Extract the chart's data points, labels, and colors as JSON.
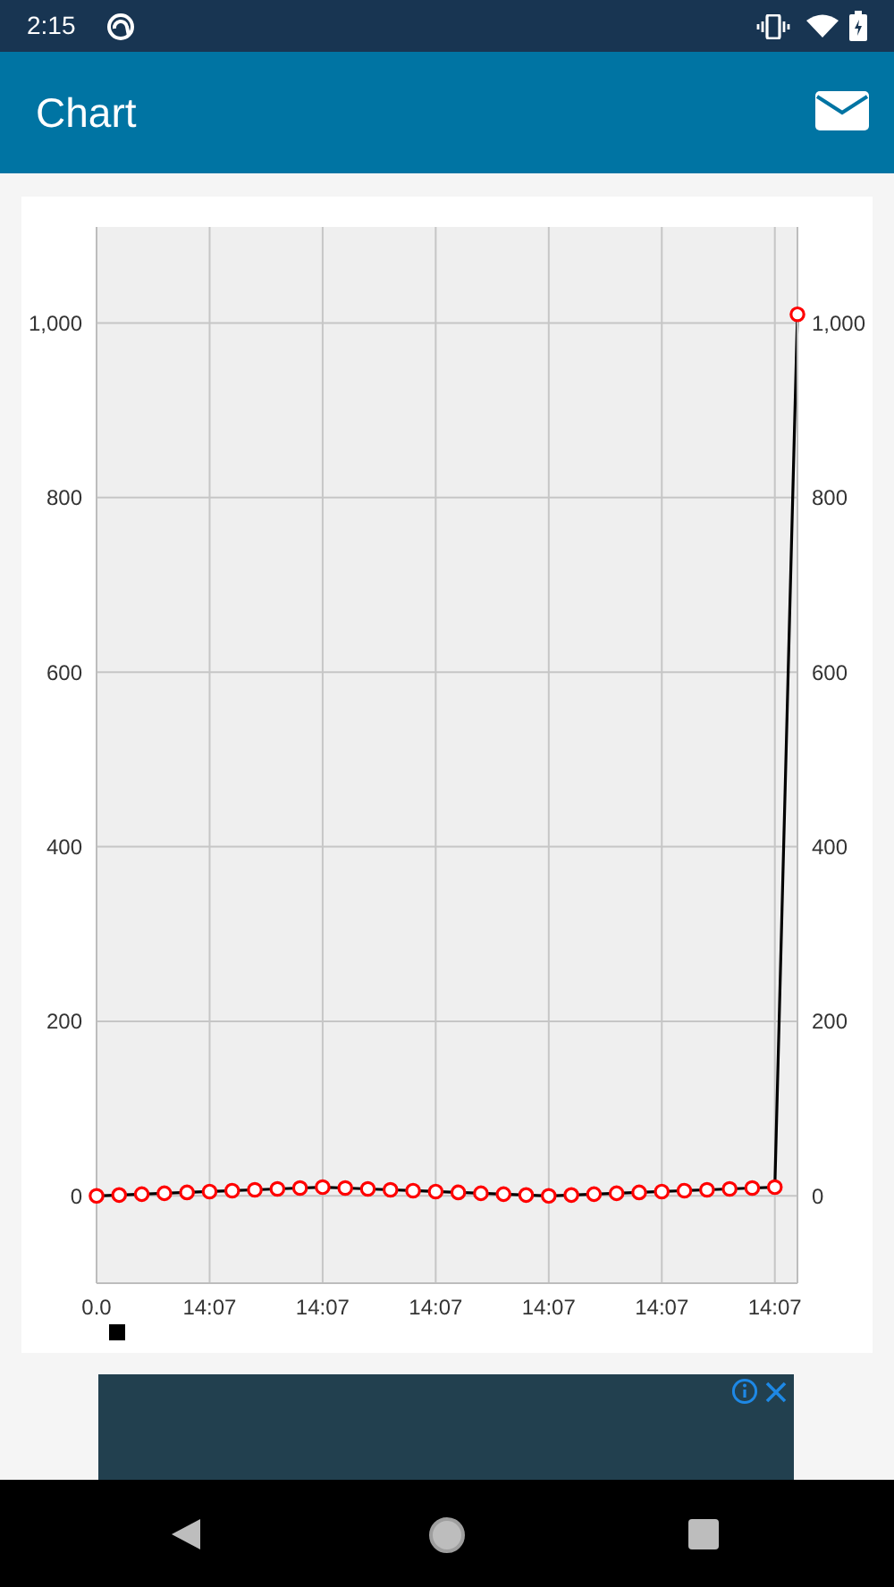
{
  "chart_data": {
    "type": "line",
    "title": "Chart",
    "annotations": [
      "2:15"
    ],
    "categories": [
      "0.0",
      null,
      null,
      null,
      null,
      "14:07",
      null,
      null,
      null,
      null,
      "14:07",
      null,
      null,
      null,
      null,
      "14:07",
      null,
      null,
      null,
      null,
      "14:07",
      null,
      null,
      null,
      null,
      "14:07",
      null,
      null,
      null,
      null,
      "14:07",
      null
    ],
    "series": [
      {
        "color": "#000000",
        "colors": [
          "#ff0000",
          "#ff0000",
          "#ff0000",
          "#ff0000",
          "#ff0000",
          "#ff0000",
          "#ff0000",
          "#ff0000",
          "#ff0000",
          "#ff0000",
          "#ff0000",
          "#ff0000",
          "#ff0000",
          "#ff0000",
          "#ff0000",
          "#ff0000",
          "#ff0000",
          "#ff0000",
          "#ff0000",
          "#ff0000",
          "#ff0000",
          "#ff0000",
          "#ff0000",
          "#ff0000",
          "#ff0000",
          "#ff0000",
          "#ff0000",
          "#ff0000",
          "#ff0000",
          "#ff0000",
          "#ff0000",
          "#ff0000"
        ],
        "values": [
          0,
          1,
          2,
          3,
          4,
          5,
          6,
          7,
          8,
          9,
          10,
          9,
          8,
          7,
          6,
          5,
          4,
          3,
          2,
          1,
          0,
          1,
          2,
          3,
          4,
          5,
          6,
          7,
          8,
          9,
          10,
          1010
        ]
      }
    ],
    "ylim": [
      -100,
      1110
    ],
    "yticks": [
      0,
      200,
      400,
      600,
      800,
      {
        "value": 1000,
        "label": "1,000"
      }
    ],
    "y2lim": [
      -100,
      1110
    ],
    "y2ticks": [
      0,
      200,
      400,
      600,
      800,
      {
        "value": 1000,
        "label": "1,000"
      }
    ],
    "grid": true,
    "marker": "circle",
    "line_style": "solid"
  }
}
